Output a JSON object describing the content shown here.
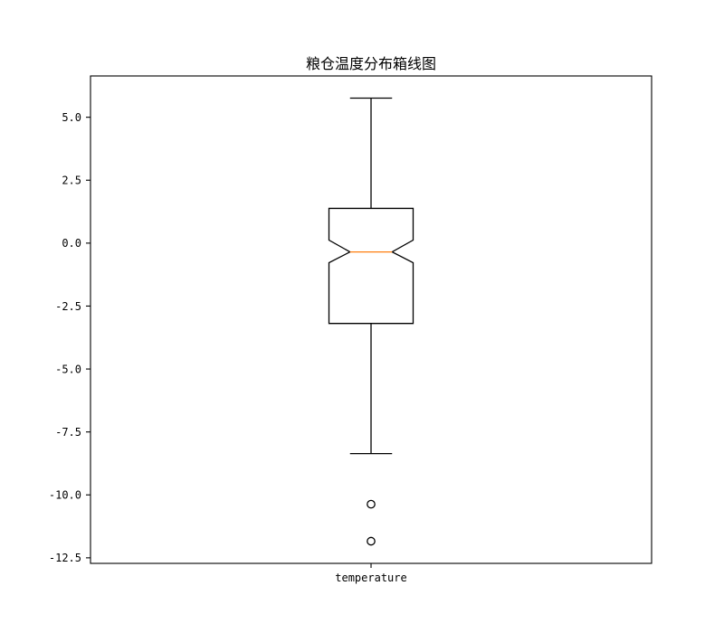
{
  "chart_data": {
    "type": "box",
    "title": "粮仓温度分布箱线图",
    "xlabel": "",
    "ylabel": "",
    "categories": [
      "temperature"
    ],
    "notched": true,
    "boxes": [
      {
        "whisker_high": 5.76,
        "q3": 1.38,
        "notch_high": 0.12,
        "median": -0.35,
        "notch_low": -0.78,
        "q1": -3.19,
        "whisker_low": -8.36,
        "outliers": [
          -10.37,
          -11.84
        ]
      }
    ],
    "ylim": [
      -12.72,
      6.64
    ],
    "yticks": [
      5.0,
      2.5,
      0.0,
      -2.5,
      -5.0,
      -7.5,
      -10.0,
      -12.5
    ],
    "ytick_labels": [
      "5.0",
      "2.5",
      "0.0",
      "-2.5",
      "-5.0",
      "-7.5",
      "-10.0",
      "-12.5"
    ],
    "grid": false,
    "colors": {
      "box": "#000000",
      "median": "#ff7f0e",
      "outlier_edge": "#000000",
      "axes": "#000000",
      "background": "#ffffff"
    }
  }
}
